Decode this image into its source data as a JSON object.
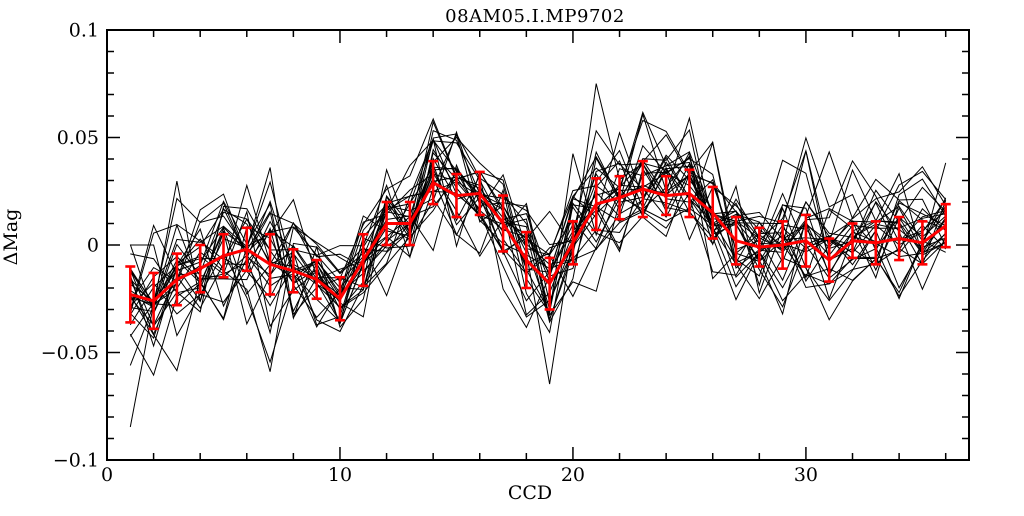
{
  "window": {
    "background": "#ffffff",
    "foreground": "#000000",
    "accent": "#ff0000"
  },
  "chart_data": {
    "type": "line",
    "title": "08AM05.I.MP9702",
    "xlabel": "CCD",
    "ylabel": "ΔMag",
    "xlim": [
      0,
      37
    ],
    "ylim": [
      -0.1,
      0.1
    ],
    "grid": false,
    "legend": "none",
    "frame": true,
    "ticks_inward_all_sides": true,
    "x_major_ticks": [
      0,
      10,
      20,
      30
    ],
    "x_tick_labels": [
      "0",
      "10",
      "20",
      "30"
    ],
    "x_minor_step": 2,
    "y_major_ticks": [
      0.1,
      0.05,
      0,
      -0.05,
      -0.1
    ],
    "y_tick_labels": [
      "0.1",
      "0.05",
      "0",
      "−0.05",
      "−0.1"
    ],
    "y_minor_step": 0.01,
    "mean_series": {
      "name": "per-CCD mean with error bars",
      "color": "#ff0000",
      "style": "thick-line-with-error-bars",
      "x": [
        1,
        2,
        3,
        4,
        5,
        6,
        7,
        8,
        9,
        10,
        11,
        12,
        13,
        14,
        15,
        16,
        17,
        18,
        19,
        20,
        21,
        22,
        23,
        24,
        25,
        26,
        27,
        28,
        29,
        30,
        31,
        32,
        33,
        34,
        35,
        36
      ],
      "y": [
        -0.023,
        -0.026,
        -0.016,
        -0.011,
        -0.005,
        -0.002,
        -0.009,
        -0.012,
        -0.016,
        -0.025,
        -0.007,
        0.01,
        0.01,
        0.029,
        0.023,
        0.024,
        0.01,
        -0.007,
        -0.018,
        0.001,
        0.019,
        0.022,
        0.026,
        0.023,
        0.024,
        0.015,
        0.002,
        -0.001,
        0.0,
        0.002,
        -0.007,
        0.002,
        0.001,
        0.003,
        0.001,
        0.009
      ],
      "yerr": [
        0.013,
        0.013,
        0.012,
        0.011,
        0.01,
        0.01,
        0.014,
        0.01,
        0.009,
        0.01,
        0.012,
        0.01,
        0.01,
        0.01,
        0.01,
        0.01,
        0.013,
        0.013,
        0.012,
        0.01,
        0.012,
        0.01,
        0.013,
        0.009,
        0.011,
        0.012,
        0.011,
        0.009,
        0.011,
        0.012,
        0.01,
        0.008,
        0.01,
        0.01,
        0.01,
        0.01
      ]
    },
    "ensemble_series": {
      "name": "individual light curves",
      "color": "#000000",
      "count": 28,
      "x_start": 1,
      "x_end": 36,
      "point_scatter_sigma": 0.012,
      "envelope_extremes": [
        -0.065,
        0.063
      ],
      "first_curve_start_values": [
        0.0,
        0.0
      ]
    }
  }
}
